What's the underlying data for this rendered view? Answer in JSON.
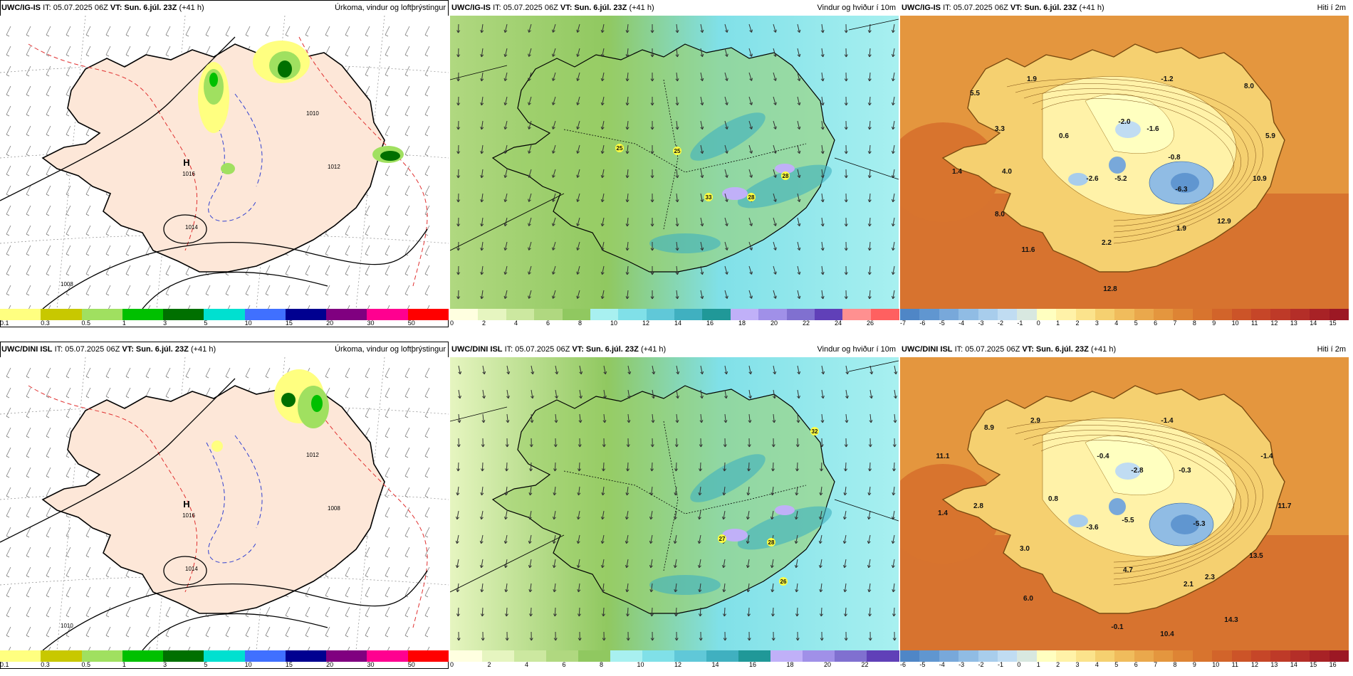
{
  "panels": {
    "p1": {
      "model": "UWC/IG-IS",
      "it": "IT: 05.07.2025 06Z",
      "vt_label": "VT: Sun. 6.júl. 23Z",
      "offset": "(+41 h)",
      "title": "Úrkoma, vindur og loftþrýstingur",
      "scale": [
        "0.1",
        "0.3",
        "0.5",
        "1",
        "3",
        "5",
        "10",
        "15",
        "20",
        "30",
        "50"
      ],
      "colors": [
        "#ffff80",
        "#c8c800",
        "#a0e060",
        "#00c000",
        "#007000",
        "#00e0d0",
        "#4070ff",
        "#000090",
        "#800080",
        "#ff0090",
        "#ff0000"
      ],
      "high": "H",
      "high_value": "1016",
      "isobars": [
        "1010",
        "1014",
        "1012",
        "1008"
      ]
    },
    "p2": {
      "model": "UWC/IG-IS",
      "it": "IT: 05.07.2025 06Z",
      "vt_label": "VT: Sun. 6.júl. 23Z",
      "offset": "(+41 h)",
      "title": "Vindur og hviður í 10m",
      "scale": [
        "0",
        "2",
        "4",
        "6",
        "8",
        "10",
        "12",
        "14",
        "16",
        "18",
        "20",
        "22",
        "24",
        "26"
      ],
      "colors": [
        "#ffffe0",
        "#e6f5c0",
        "#cce8a0",
        "#b0d880",
        "#90c860",
        "#a8f0f0",
        "#80e0e8",
        "#60c8d8",
        "#40b0c0",
        "#209898",
        "#c0b0f8",
        "#a090e8",
        "#8070d0",
        "#6040b8",
        "#ff9090",
        "#ff6060"
      ],
      "gusts": [
        "25",
        "25",
        "33",
        "28",
        "28"
      ]
    },
    "p3": {
      "model": "UWC/IG-IS",
      "it": "IT: 05.07.2025 06Z",
      "vt_label": "VT: Sun. 6.júl. 23Z",
      "offset": "(+41 h)",
      "title": "Hiti í 2m",
      "scale": [
        "-7",
        "-6",
        "-5",
        "-4",
        "-3",
        "-2",
        "-1",
        "0",
        "1",
        "2",
        "3",
        "4",
        "5",
        "6",
        "7",
        "8",
        "9",
        "10",
        "11",
        "12",
        "13",
        "14",
        "15"
      ],
      "colors": [
        "#4f86c6",
        "#6096d0",
        "#78a8da",
        "#90bce4",
        "#a8cdec",
        "#c0dcf2",
        "#d8e8e0",
        "#ffffc0",
        "#fff2a8",
        "#fbe38c",
        "#f5d070",
        "#f0bc5c",
        "#eaa84c",
        "#e4963e",
        "#de8434",
        "#d8742e",
        "#d2642a",
        "#cc5428",
        "#c64628",
        "#be3a28",
        "#b42e28",
        "#a82226",
        "#9c1824"
      ],
      "temps": [
        "5.5",
        "1.9",
        "-1.2",
        "8.0",
        "3.3",
        "-2.0",
        "-1.6",
        "0.6",
        "5.9",
        "-0.8",
        "1.4",
        "4.0",
        "-2.6",
        "-5.2",
        "-6.3",
        "10.9",
        "8.0",
        "1.9",
        "12.9",
        "11.6",
        "2.2",
        "12.8"
      ]
    },
    "p4": {
      "model": "UWC/DINI ISL",
      "it": "IT: 05.07.2025 06Z",
      "vt_label": "VT: Sun. 6.júl. 23Z",
      "offset": "(+41 h)",
      "title": "Úrkoma, vindur og loftþrýstingur",
      "scale": [
        "0.1",
        "0.3",
        "0.5",
        "1",
        "3",
        "5",
        "10",
        "15",
        "20",
        "30",
        "50"
      ],
      "colors": [
        "#ffff80",
        "#c8c800",
        "#a0e060",
        "#00c000",
        "#007000",
        "#00e0d0",
        "#4070ff",
        "#000090",
        "#800080",
        "#ff0090",
        "#ff0000"
      ],
      "high": "H",
      "high_value": "1016",
      "isobars": [
        "1012",
        "1014",
        "1008",
        "1010"
      ]
    },
    "p5": {
      "model": "UWC/DINI ISL",
      "it": "IT: 05.07.2025 06Z",
      "vt_label": "VT: Sun. 6.júl. 23Z",
      "offset": "(+41 h)",
      "title": "Vindur og hviður í 10m",
      "scale": [
        "0",
        "2",
        "4",
        "6",
        "8",
        "10",
        "12",
        "14",
        "16",
        "18",
        "20",
        "22"
      ],
      "colors": [
        "#ffffe0",
        "#e6f5c0",
        "#cce8a0",
        "#b0d880",
        "#90c860",
        "#a8f0f0",
        "#80e0e8",
        "#60c8d8",
        "#40b0c0",
        "#209898",
        "#c0b0f8",
        "#a090e8",
        "#8070d0",
        "#6040b8"
      ],
      "gusts": [
        "32",
        "27",
        "28",
        "26"
      ]
    },
    "p6": {
      "model": "UWC/DINI ISL",
      "it": "IT: 05.07.2025 06Z",
      "vt_label": "VT: Sun. 6.júl. 23Z",
      "offset": "(+41 h)",
      "title": "Hiti í 2m",
      "scale": [
        "-6",
        "-5",
        "-4",
        "-3",
        "-2",
        "-1",
        "0",
        "1",
        "2",
        "3",
        "4",
        "5",
        "6",
        "7",
        "8",
        "9",
        "10",
        "11",
        "12",
        "13",
        "14",
        "15",
        "16"
      ],
      "colors": [
        "#4f86c6",
        "#6096d0",
        "#78a8da",
        "#90bce4",
        "#a8cdec",
        "#c0dcf2",
        "#d8e8e0",
        "#ffffc0",
        "#fff2a8",
        "#fbe38c",
        "#f5d070",
        "#f0bc5c",
        "#eaa84c",
        "#e4963e",
        "#de8434",
        "#d8742e",
        "#d2642a",
        "#cc5428",
        "#c64628",
        "#be3a28",
        "#b42e28",
        "#a82226",
        "#9c1824"
      ],
      "temps": [
        "8.9",
        "2.9",
        "-1.4",
        "11.1",
        "-0.4",
        "-1.4",
        "-2.8",
        "-0.3",
        "1.4",
        "2.8",
        "0.8",
        "11.7",
        "-3.6",
        "-5.5",
        "-5.3",
        "3.0",
        "13.5",
        "4.7",
        "2.3",
        "2.1",
        "6.0",
        "14.3",
        "-0.1",
        "10.4"
      ]
    }
  }
}
